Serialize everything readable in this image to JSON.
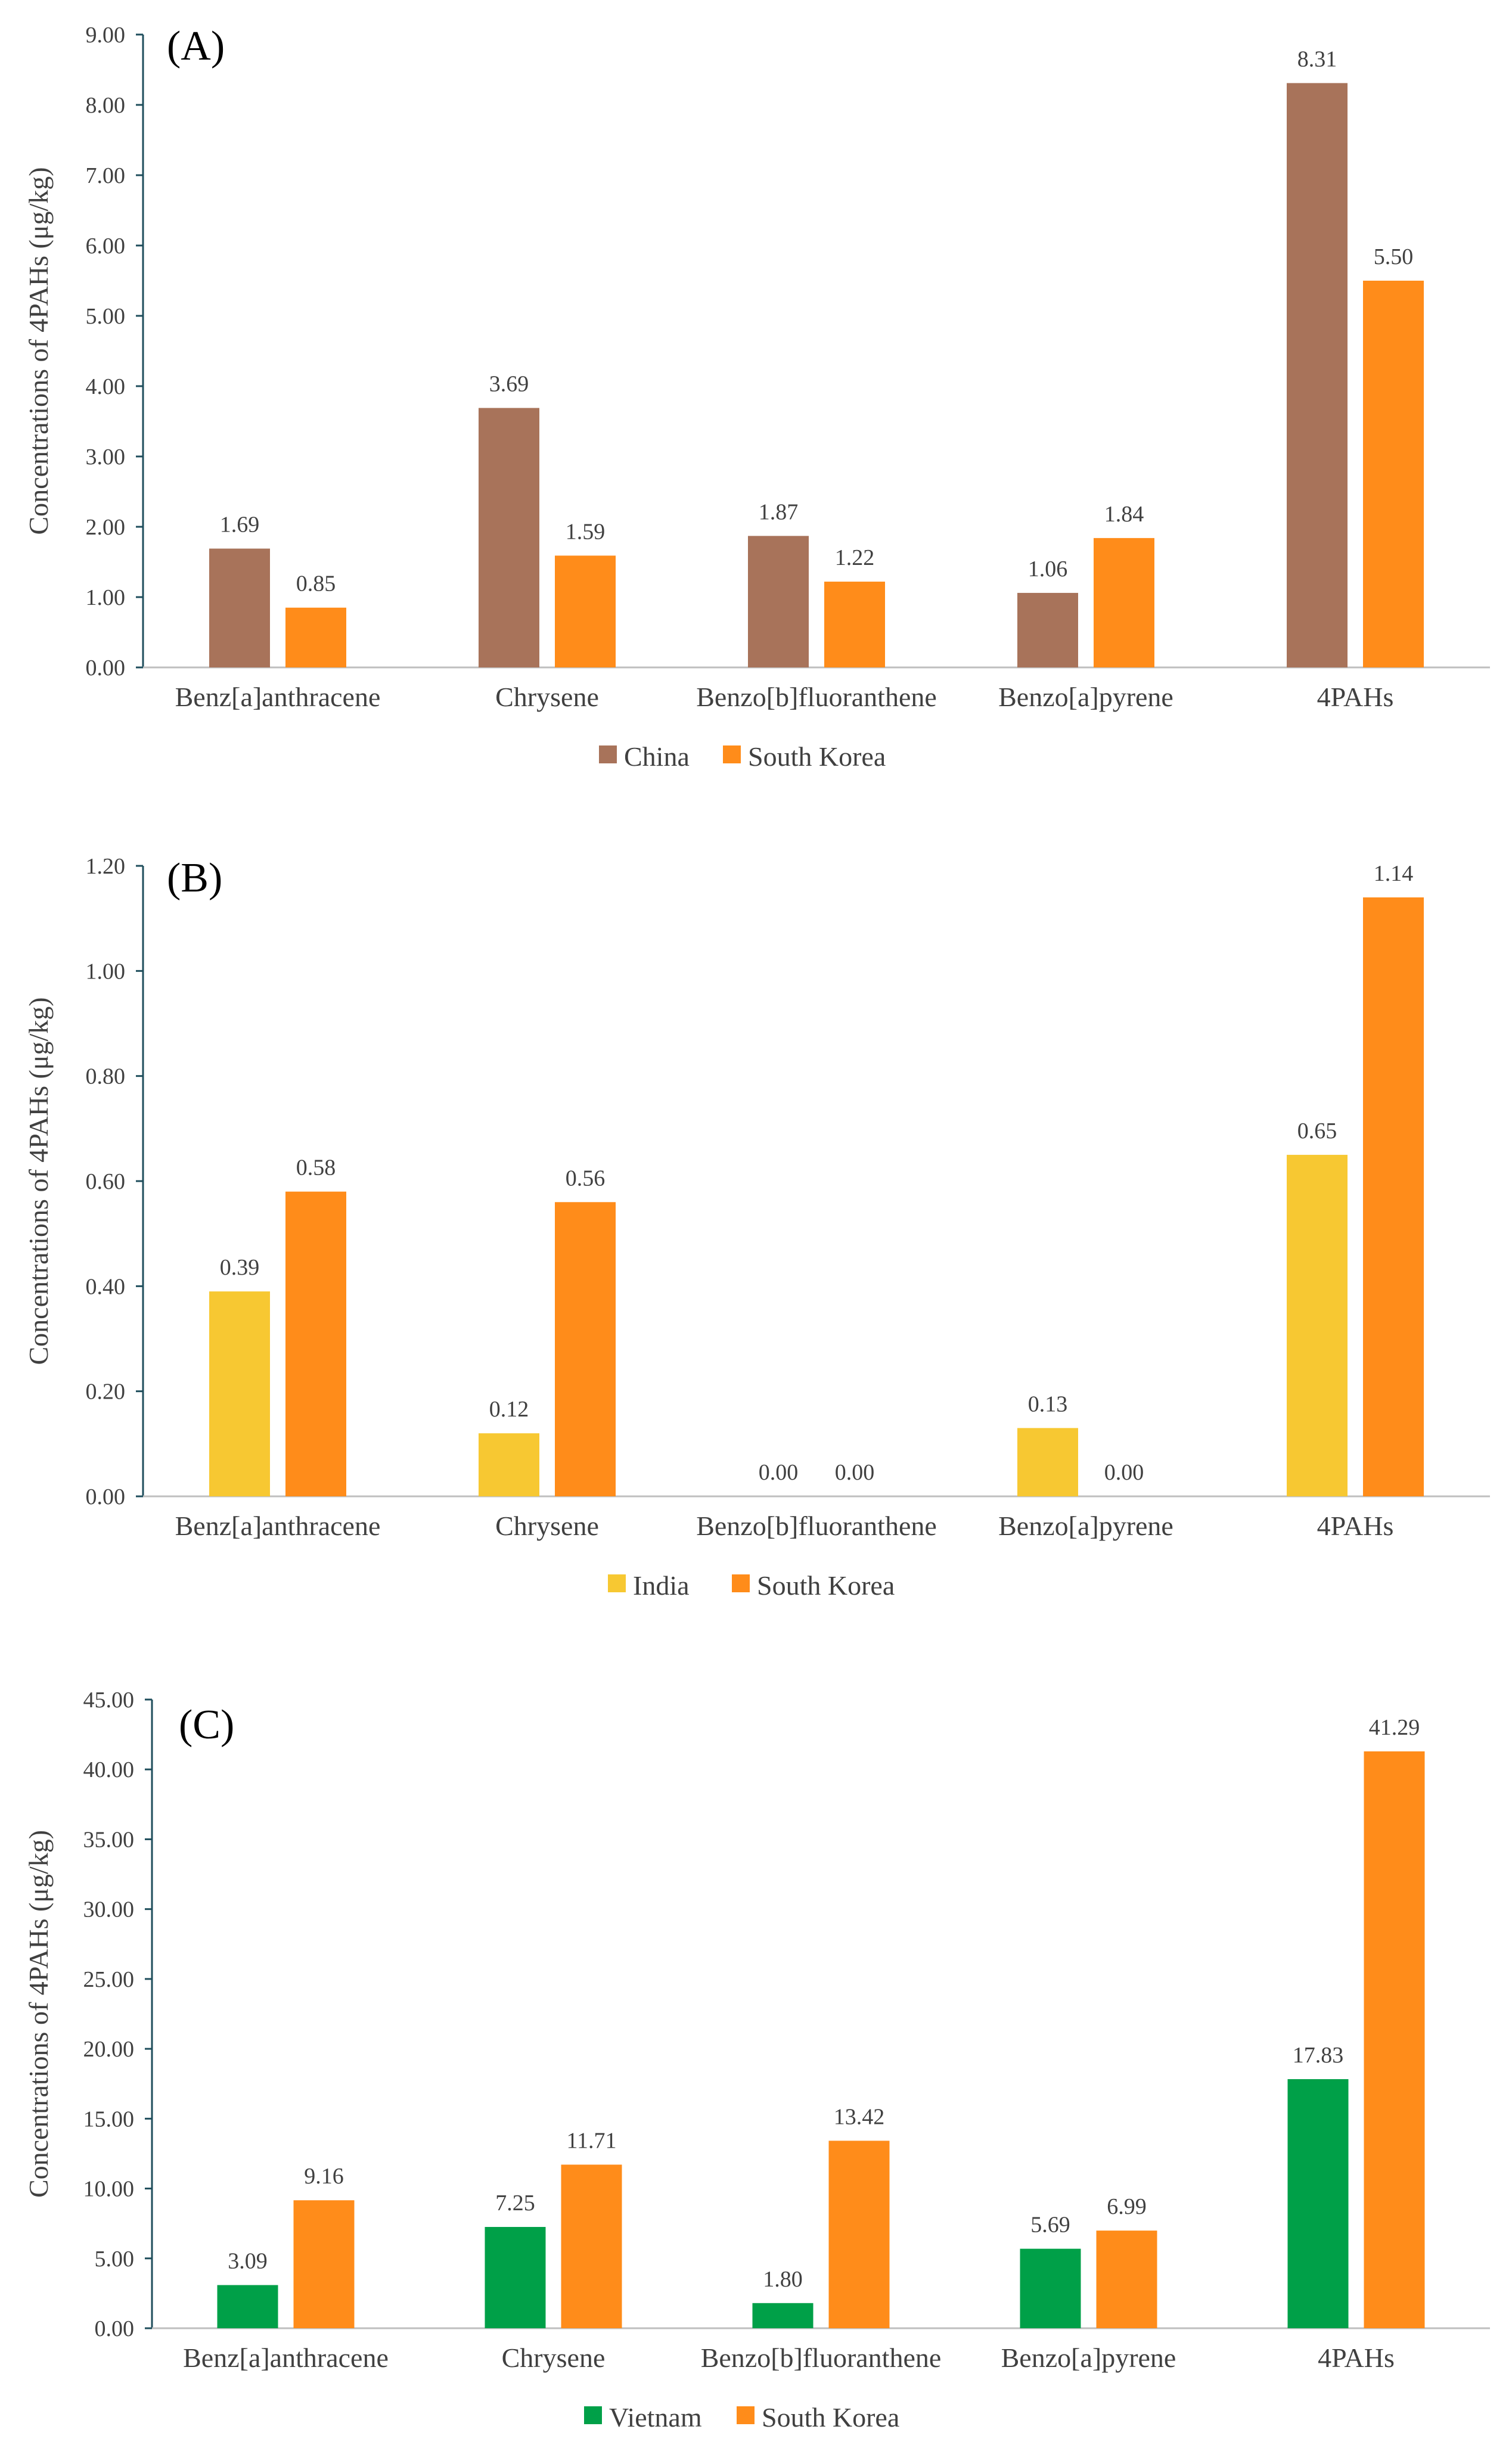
{
  "chart_data": [
    {
      "type": "bar",
      "title": "(A)",
      "ylabel": "Concentrations of 4PAHs (μg/kg)",
      "xlabel": "",
      "categories": [
        "Benz[a]anthracene",
        "Chrysene",
        "Benzo[b]fluoranthene",
        "Benzo[a]pyrene",
        "4PAHs"
      ],
      "ylim": [
        0,
        9
      ],
      "yticks": [
        "0.00",
        "1.00",
        "2.00",
        "3.00",
        "4.00",
        "5.00",
        "6.00",
        "7.00",
        "8.00",
        "9.00"
      ],
      "grid": false,
      "legend_position": "bottom",
      "series": [
        {
          "name": "China",
          "color": "#a8735a",
          "values": [
            1.69,
            3.69,
            1.87,
            1.06,
            8.31
          ],
          "labels": [
            "1.69",
            "3.69",
            "1.87",
            "1.06",
            "8.31"
          ]
        },
        {
          "name": "South Korea",
          "color": "#ff8c1a",
          "values": [
            0.85,
            1.59,
            1.22,
            1.84,
            5.5
          ],
          "labels": [
            "0.85",
            "1.59",
            "1.22",
            "1.84",
            "5.50"
          ]
        }
      ]
    },
    {
      "type": "bar",
      "title": "(B)",
      "ylabel": "Concentrations of 4PAHs (μg/kg)",
      "xlabel": "",
      "categories": [
        "Benz[a]anthracene",
        "Chrysene",
        "Benzo[b]fluoranthene",
        "Benzo[a]pyrene",
        "4PAHs"
      ],
      "ylim": [
        0,
        1.2
      ],
      "yticks": [
        "0.00",
        "0.20",
        "0.40",
        "0.60",
        "0.80",
        "1.00",
        "1.20"
      ],
      "grid": false,
      "legend_position": "bottom",
      "series": [
        {
          "name": "India",
          "color": "#f7c832",
          "values": [
            0.39,
            0.12,
            0.0,
            0.13,
            0.65
          ],
          "labels": [
            "0.39",
            "0.12",
            "0.00",
            "0.13",
            "0.65"
          ]
        },
        {
          "name": "South Korea",
          "color": "#ff8c1a",
          "values": [
            0.58,
            0.56,
            0.0,
            0.0,
            1.14
          ],
          "labels": [
            "0.58",
            "0.56",
            "0.00",
            "0.00",
            "1.14"
          ]
        }
      ]
    },
    {
      "type": "bar",
      "title": "(C)",
      "ylabel": "Concentrations of 4PAHs (μg/kg)",
      "xlabel": "",
      "categories": [
        "Benz[a]anthracene",
        "Chrysene",
        "Benzo[b]fluoranthene",
        "Benzo[a]pyrene",
        "4PAHs"
      ],
      "ylim": [
        0,
        45
      ],
      "yticks": [
        "0.00",
        "5.00",
        "10.00",
        "15.00",
        "20.00",
        "25.00",
        "30.00",
        "35.00",
        "40.00",
        "45.00"
      ],
      "grid": false,
      "legend_position": "bottom",
      "series": [
        {
          "name": "Vietnam",
          "color": "#00a048",
          "values": [
            3.09,
            7.25,
            1.8,
            5.69,
            17.83
          ],
          "labels": [
            "3.09",
            "7.25",
            "1.80",
            "5.69",
            "17.83"
          ]
        },
        {
          "name": "South Korea",
          "color": "#ff8c1a",
          "values": [
            9.16,
            11.71,
            13.42,
            6.99,
            41.29
          ],
          "labels": [
            "9.16",
            "11.71",
            "13.42",
            "6.99",
            "41.29"
          ]
        }
      ]
    }
  ]
}
